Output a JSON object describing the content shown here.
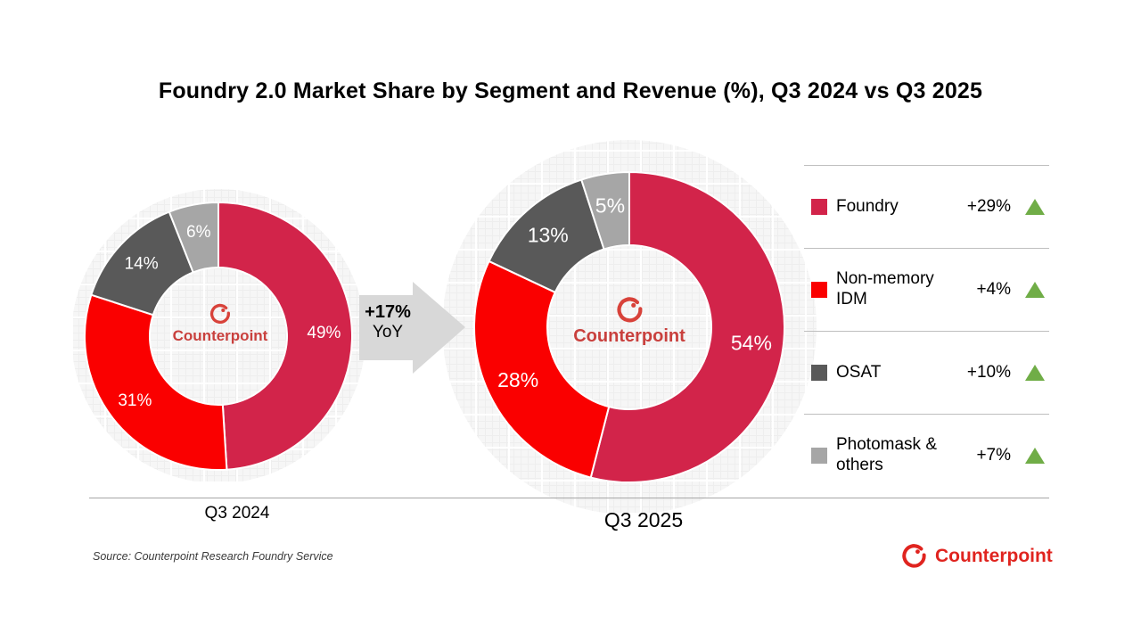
{
  "title": "Foundry 2.0 Market Share by Segment and Revenue (%), Q3 2024 vs Q3 2025",
  "source": "Source: Counterpoint Research Foundry Service",
  "brand": {
    "logo_text": "Counterpoint",
    "footer_logo_color": "#e0241f",
    "center_logo_color": "#c9403d"
  },
  "arrow": {
    "growth": "+17%",
    "period": "YoY",
    "color": "#d8d8d8"
  },
  "colors": {
    "foundry": "#d2244a",
    "non_memory_idm": "#fa0000",
    "osat": "#595959",
    "photomask_others": "#a6a6a6",
    "positive_change": "#70ad47"
  },
  "legend": {
    "items": [
      {
        "label": "Foundry",
        "change": "+29%",
        "color": "#d2244a"
      },
      {
        "label": "Non-memory IDM",
        "change": "+4%",
        "color": "#fa0000"
      },
      {
        "label": "OSAT",
        "change": "+10%",
        "color": "#595959"
      },
      {
        "label": "Photomask & others",
        "change": "+7%",
        "color": "#a6a6a6"
      }
    ]
  },
  "chart_data": [
    {
      "type": "pie",
      "title": "Q3 2024",
      "categories": [
        "Foundry",
        "Non-memory IDM",
        "OSAT",
        "Photomask & others"
      ],
      "values": [
        49,
        31,
        14,
        6
      ],
      "value_suffix": "%",
      "colors": [
        "#d2244a",
        "#fa0000",
        "#595959",
        "#a6a6a6"
      ],
      "donut": true,
      "start_angle": "top, clockwise",
      "center_label": "Counterpoint"
    },
    {
      "type": "pie",
      "title": "Q3 2025",
      "categories": [
        "Foundry",
        "Non-memory IDM",
        "OSAT",
        "Photomask & others"
      ],
      "values": [
        54,
        28,
        13,
        5
      ],
      "value_suffix": "%",
      "colors": [
        "#d2244a",
        "#fa0000",
        "#595959",
        "#a6a6a6"
      ],
      "donut": true,
      "start_angle": "top, clockwise",
      "center_label": "Counterpoint"
    }
  ]
}
